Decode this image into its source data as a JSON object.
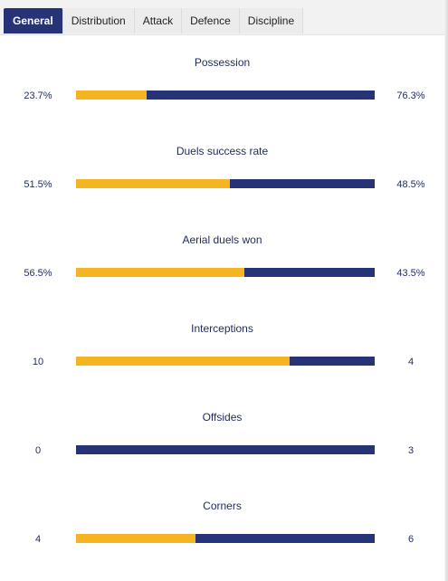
{
  "tabs": [
    {
      "label": "General",
      "active": true
    },
    {
      "label": "Distribution",
      "active": false
    },
    {
      "label": "Attack",
      "active": false
    },
    {
      "label": "Defence",
      "active": false
    },
    {
      "label": "Discipline",
      "active": false
    }
  ],
  "colors": {
    "home": "#f5b523",
    "away": "#273377",
    "active_tab": "#273377"
  },
  "stats": [
    {
      "title": "Possession",
      "left": "23.7%",
      "right": "76.3%",
      "home_share": 0.237
    },
    {
      "title": "Duels success rate",
      "left": "51.5%",
      "right": "48.5%",
      "home_share": 0.515
    },
    {
      "title": "Aerial duels won",
      "left": "56.5%",
      "right": "43.5%",
      "home_share": 0.565
    },
    {
      "title": "Interceptions",
      "left": "10",
      "right": "4",
      "home_share": 0.714
    },
    {
      "title": "Offsides",
      "left": "0",
      "right": "3",
      "home_share": 0.0
    },
    {
      "title": "Corners",
      "left": "4",
      "right": "6",
      "home_share": 0.4
    }
  ]
}
